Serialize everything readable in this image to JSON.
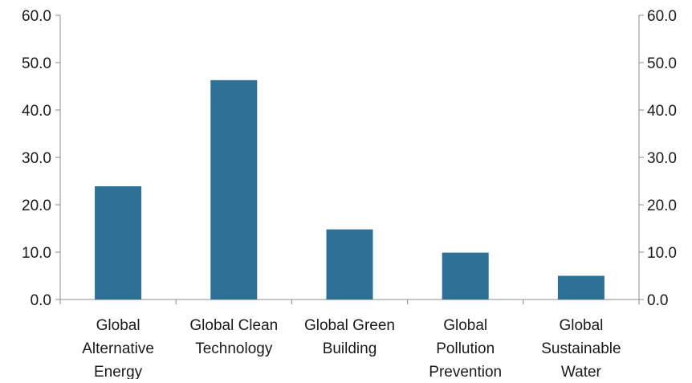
{
  "chart_data": {
    "type": "bar",
    "categories": [
      [
        "Global",
        "Alternative",
        "Energy"
      ],
      [
        "Global Clean",
        "Technology"
      ],
      [
        "Global Green",
        "Building"
      ],
      [
        "Global",
        "Pollution",
        "Prevention"
      ],
      [
        "Global",
        "Sustainable",
        "Water"
      ]
    ],
    "values": [
      23.9,
      46.3,
      14.8,
      9.9,
      5.0
    ],
    "title": "",
    "xlabel": "",
    "ylabel": "",
    "ylim": [
      0,
      60
    ],
    "yticks": [
      "0.0",
      "10.0",
      "20.0",
      "30.0",
      "40.0",
      "50.0",
      "60.0"
    ],
    "secondary_yticks": [
      "0.0",
      "10.0",
      "20.0",
      "30.0",
      "40.0",
      "50.0",
      "60.0"
    ],
    "grid": false,
    "legend": "none",
    "bar_color": "#2e7096",
    "axis_color": "#8c8c8c"
  }
}
